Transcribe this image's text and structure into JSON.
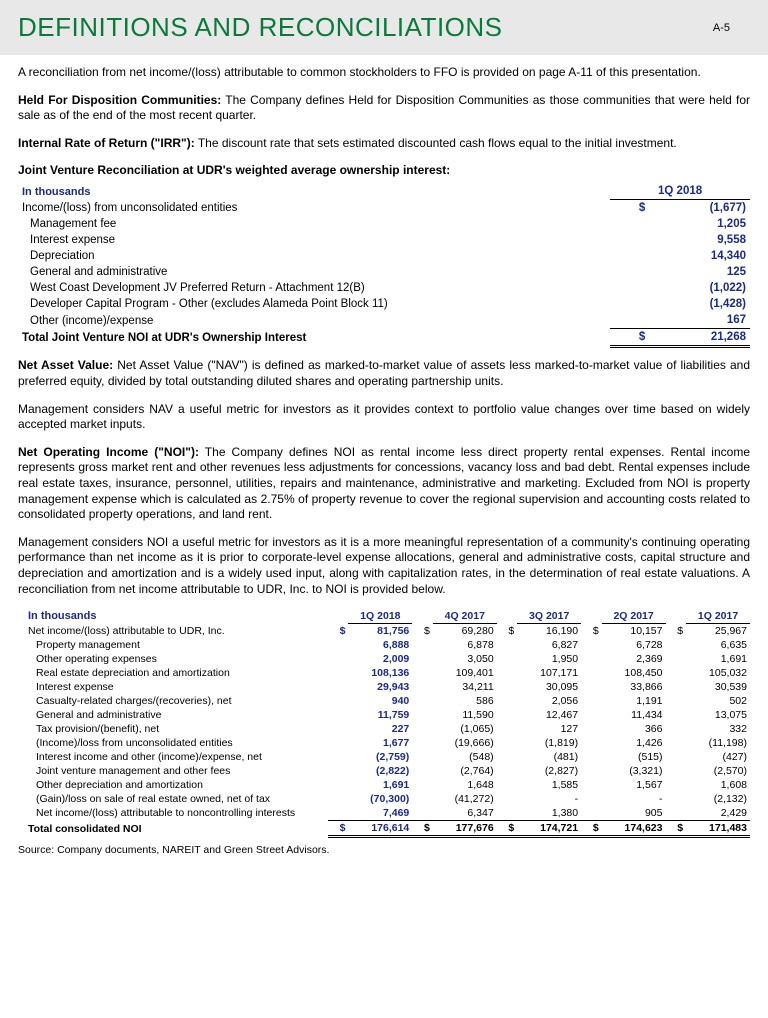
{
  "header": {
    "title": "DEFINITIONS AND RECONCILIATIONS",
    "page_code": "A-5"
  },
  "intro": "A reconciliation from net income/(loss) attributable to common stockholders to FFO is provided on page A-11 of this presentation.",
  "defs": {
    "hfd_label": "Held For Disposition Communities:",
    "hfd_text": "  The Company defines Held for Disposition Communities as those communities that were held for sale as of the end of the most recent quarter.",
    "irr_label": "Internal Rate of Return (\"IRR\"):",
    "irr_text": "  The discount rate that sets estimated discounted cash flows equal to the initial investment.",
    "nav_label": "Net Asset Value:",
    "nav_text": "  Net Asset Value (\"NAV\") is defined as marked-to-market value of assets less marked-to-market value of liabilities and preferred equity, divided by total outstanding diluted shares and operating partnership units.",
    "nav_para2": "Management considers NAV a useful metric for investors as it provides context to portfolio value changes over time based on widely accepted market inputs.",
    "noi_label": "Net Operating Income (\"NOI\"):",
    "noi_text": "  The Company defines NOI as rental income less direct property rental expenses.  Rental income represents gross market rent and other revenues less adjustments for concessions, vacancy loss and bad debt.  Rental expenses include real estate taxes, insurance, personnel, utilities, repairs and maintenance, administrative and marketing. Excluded from NOI is property management expense which is calculated as 2.75% of property revenue to cover the regional supervision and accounting costs related to consolidated property operations, and land rent.",
    "noi_para2": "Management considers NOI a useful metric for investors as it is a more meaningful representation of a community's continuing operating performance than net income as it is prior to corporate-level expense allocations, general and administrative costs, capital structure and depreciation and amortization and is a widely used input, along with capitalization rates, in the determination of real estate valuations.  A reconciliation from net income attributable to UDR, Inc. to NOI is provided below."
  },
  "jv": {
    "heading": "Joint Venture Reconciliation at UDR's weighted average ownership interest:",
    "units": "In thousands",
    "period": "1Q 2018",
    "rows": [
      {
        "label": "Income/(loss) from unconsolidated entities",
        "cur": "$",
        "val": "(1,677)",
        "indent": 0
      },
      {
        "label": "Management fee",
        "val": "1,205",
        "indent": 1
      },
      {
        "label": "Interest expense",
        "val": "9,558",
        "indent": 1
      },
      {
        "label": "Depreciation",
        "val": "14,340",
        "indent": 1
      },
      {
        "label": "General and administrative",
        "val": "125",
        "indent": 1
      },
      {
        "label": "West Coast Development JV Preferred Return - Attachment 12(B)",
        "val": "(1,022)",
        "indent": 1
      },
      {
        "label": "Developer Capital Program - Other (excludes Alameda Point Block 11)",
        "val": "(1,428)",
        "indent": 1
      },
      {
        "label": "Other (income)/expense",
        "val": "167",
        "indent": 1,
        "underline": true
      }
    ],
    "total_label": "Total Joint Venture NOI at UDR's Ownership Interest",
    "total_cur": "$",
    "total_val": "21,268"
  },
  "noi": {
    "units": "In thousands",
    "periods": [
      "1Q 2018",
      "4Q 2017",
      "3Q 2017",
      "2Q 2017",
      "1Q 2017"
    ],
    "rows": [
      {
        "label": "Net income/(loss) attributable to UDR, Inc.",
        "indent": 1,
        "show_cur": true,
        "vals": [
          "81,756",
          "69,280",
          "16,190",
          "10,157",
          "25,967"
        ]
      },
      {
        "label": "Property management",
        "indent": 2,
        "vals": [
          "6,888",
          "6,878",
          "6,827",
          "6,728",
          "6,635"
        ]
      },
      {
        "label": "Other operating expenses",
        "indent": 2,
        "vals": [
          "2,009",
          "3,050",
          "1,950",
          "2,369",
          "1,691"
        ]
      },
      {
        "label": "Real estate depreciation and amortization",
        "indent": 2,
        "vals": [
          "108,136",
          "109,401",
          "107,171",
          "108,450",
          "105,032"
        ]
      },
      {
        "label": "Interest expense",
        "indent": 2,
        "vals": [
          "29,943",
          "34,211",
          "30,095",
          "33,866",
          "30,539"
        ]
      },
      {
        "label": "Casualty-related charges/(recoveries), net",
        "indent": 2,
        "vals": [
          "940",
          "586",
          "2,056",
          "1,191",
          "502"
        ]
      },
      {
        "label": "General and administrative",
        "indent": 2,
        "vals": [
          "11,759",
          "11,590",
          "12,467",
          "11,434",
          "13,075"
        ]
      },
      {
        "label": "Tax provision/(benefit), net",
        "indent": 2,
        "vals": [
          "227",
          "(1,065)",
          "127",
          "366",
          "332"
        ]
      },
      {
        "label": "(Income)/loss from unconsolidated entities",
        "indent": 2,
        "vals": [
          "1,677",
          "(19,666)",
          "(1,819)",
          "1,426",
          "(11,198)"
        ]
      },
      {
        "label": "Interest income and other (income)/expense, net",
        "indent": 2,
        "vals": [
          "(2,759)",
          "(548)",
          "(481)",
          "(515)",
          "(427)"
        ]
      },
      {
        "label": "Joint venture management and other fees",
        "indent": 2,
        "vals": [
          "(2,822)",
          "(2,764)",
          "(2,827)",
          "(3,321)",
          "(2,570)"
        ]
      },
      {
        "label": "Other depreciation and amortization",
        "indent": 2,
        "vals": [
          "1,691",
          "1,648",
          "1,585",
          "1,567",
          "1,608"
        ]
      },
      {
        "label": "(Gain)/loss on sale of real estate owned, net of tax",
        "indent": 2,
        "vals": [
          "(70,300)",
          "(41,272)",
          "-",
          "-",
          "(2,132)"
        ]
      },
      {
        "label": "Net income/(loss) attributable to noncontrolling interests",
        "indent": 2,
        "underline": true,
        "vals": [
          "7,469",
          "6,347",
          "1,380",
          "905",
          "2,429"
        ]
      }
    ],
    "total_label": "Total consolidated NOI",
    "total_show_cur": true,
    "total_vals": [
      "176,614",
      "177,676",
      "174,721",
      "174,623",
      "171,483"
    ]
  },
  "source": "Source:  Company documents, NAREIT and Green Street Advisors."
}
